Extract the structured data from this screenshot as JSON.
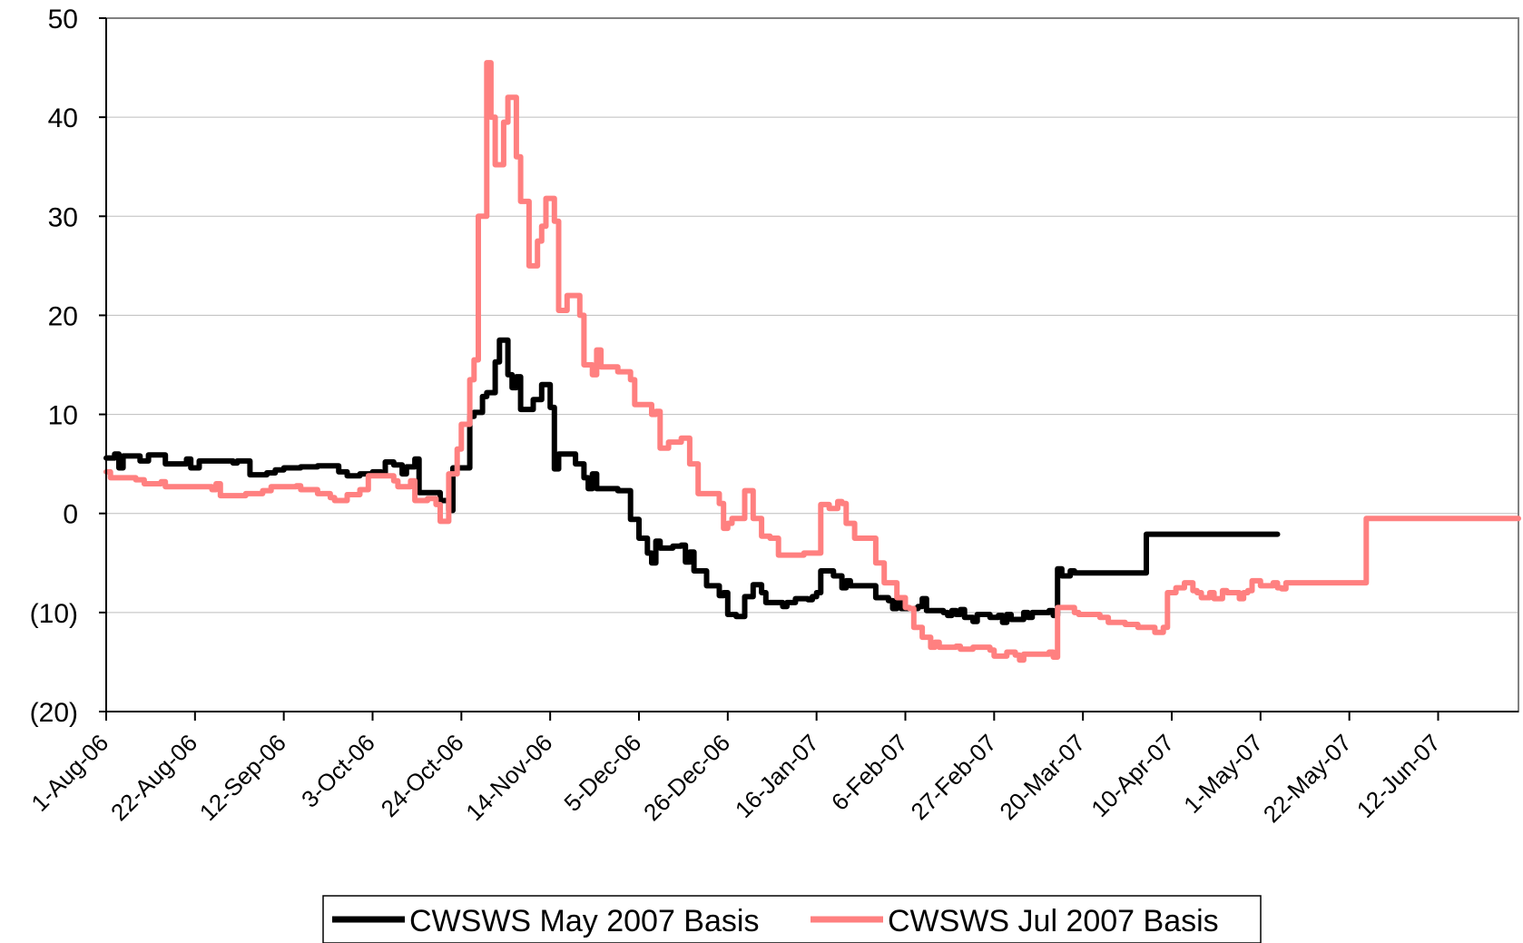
{
  "chart_data": {
    "type": "line",
    "title": "",
    "xlabel": "",
    "ylabel": "",
    "ylim": [
      -20,
      50
    ],
    "y_ticks": [
      {
        "value": 50,
        "label": "50",
        "negative": false
      },
      {
        "value": 40,
        "label": "40",
        "negative": false
      },
      {
        "value": 30,
        "label": "30",
        "negative": false
      },
      {
        "value": 20,
        "label": "20",
        "negative": false
      },
      {
        "value": 10,
        "label": "10",
        "negative": false
      },
      {
        "value": 0,
        "label": "0",
        "negative": false
      },
      {
        "value": -10,
        "label": "(10)",
        "negative": true
      },
      {
        "value": -20,
        "label": "(20)",
        "negative": true
      }
    ],
    "x_range": [
      "2006-08-01",
      "2007-07-01"
    ],
    "x_tick_dates": [
      "2006-08-01",
      "2006-08-22",
      "2006-09-12",
      "2006-10-03",
      "2006-10-24",
      "2006-11-14",
      "2006-12-05",
      "2006-12-26",
      "2007-01-16",
      "2007-02-06",
      "2007-02-27",
      "2007-03-20",
      "2007-04-10",
      "2007-05-01",
      "2007-05-22",
      "2007-06-12"
    ],
    "x_tick_labels": [
      "1-Aug-06",
      "22-Aug-06",
      "12-Sep-06",
      "3-Oct-06",
      "24-Oct-06",
      "14-Nov-06",
      "5-Dec-06",
      "26-Dec-06",
      "16-Jan-07",
      "6-Feb-07",
      "27-Feb-07",
      "20-Mar-07",
      "10-Apr-07",
      "1-May-07",
      "22-May-07",
      "12-Jun-07"
    ],
    "grid": "horizontal",
    "legend_position": "bottom",
    "negative_label_color": "#e00000",
    "series": [
      {
        "name": "CWSWS May 2007 Basis",
        "color": "#000000",
        "points": [
          [
            "2006-08-01",
            5.6
          ],
          [
            "2006-08-03",
            6.0
          ],
          [
            "2006-08-04",
            4.6
          ],
          [
            "2006-08-05",
            5.8
          ],
          [
            "2006-08-09",
            5.3
          ],
          [
            "2006-08-11",
            5.9
          ],
          [
            "2006-08-13",
            5.9
          ],
          [
            "2006-08-15",
            5.0
          ],
          [
            "2006-08-20",
            5.5
          ],
          [
            "2006-08-21",
            4.6
          ],
          [
            "2006-08-23",
            5.3
          ],
          [
            "2006-08-31",
            5.1
          ],
          [
            "2006-09-01",
            5.3
          ],
          [
            "2006-09-03",
            5.3
          ],
          [
            "2006-09-04",
            3.9
          ],
          [
            "2006-09-08",
            4.1
          ],
          [
            "2006-09-10",
            4.4
          ],
          [
            "2006-09-12",
            4.6
          ],
          [
            "2006-09-16",
            4.7
          ],
          [
            "2006-09-20",
            4.8
          ],
          [
            "2006-09-25",
            4.2
          ],
          [
            "2006-09-27",
            3.8
          ],
          [
            "2006-09-30",
            4.0
          ],
          [
            "2006-10-03",
            4.2
          ],
          [
            "2006-10-05",
            4.1
          ],
          [
            "2006-10-06",
            5.2
          ],
          [
            "2006-10-08",
            4.9
          ],
          [
            "2006-10-10",
            4.0
          ],
          [
            "2006-10-11",
            4.7
          ],
          [
            "2006-10-13",
            5.5
          ],
          [
            "2006-10-14",
            2.1
          ],
          [
            "2006-10-19",
            1.3
          ],
          [
            "2006-10-21",
            0.3
          ],
          [
            "2006-10-22",
            4.6
          ],
          [
            "2006-10-25",
            4.6
          ],
          [
            "2006-10-26",
            9.8
          ],
          [
            "2006-10-27",
            10.2
          ],
          [
            "2006-10-29",
            11.8
          ],
          [
            "2006-10-30",
            12.2
          ],
          [
            "2006-11-01",
            15.3
          ],
          [
            "2006-11-02",
            17.5
          ],
          [
            "2006-11-04",
            14.0
          ],
          [
            "2006-11-05",
            12.7
          ],
          [
            "2006-11-06",
            13.8
          ],
          [
            "2006-11-07",
            10.5
          ],
          [
            "2006-11-10",
            11.5
          ],
          [
            "2006-11-12",
            13.0
          ],
          [
            "2006-11-14",
            10.7
          ],
          [
            "2006-11-15",
            4.5
          ],
          [
            "2006-11-16",
            6.0
          ],
          [
            "2006-11-20",
            5.0
          ],
          [
            "2006-11-22",
            3.6
          ],
          [
            "2006-11-23",
            2.5
          ],
          [
            "2006-11-24",
            4.0
          ],
          [
            "2006-11-25",
            2.5
          ],
          [
            "2006-11-30",
            2.3
          ],
          [
            "2006-12-03",
            -0.6
          ],
          [
            "2006-12-05",
            -2.5
          ],
          [
            "2006-12-07",
            -4.0
          ],
          [
            "2006-12-08",
            -5.0
          ],
          [
            "2006-12-09",
            -2.8
          ],
          [
            "2006-12-10",
            -3.5
          ],
          [
            "2006-12-13",
            -3.3
          ],
          [
            "2006-12-15",
            -3.2
          ],
          [
            "2006-12-16",
            -4.9
          ],
          [
            "2006-12-17",
            -3.9
          ],
          [
            "2006-12-18",
            -5.8
          ],
          [
            "2006-12-21",
            -7.3
          ],
          [
            "2006-12-24",
            -8.3
          ],
          [
            "2006-12-25",
            -8.0
          ],
          [
            "2006-12-26",
            -10.2
          ],
          [
            "2006-12-28",
            -10.4
          ],
          [
            "2006-12-30",
            -8.4
          ],
          [
            "2007-01-01",
            -7.2
          ],
          [
            "2007-01-03",
            -8.0
          ],
          [
            "2007-01-04",
            -9.0
          ],
          [
            "2007-01-07",
            -9.0
          ],
          [
            "2007-01-08",
            -9.4
          ],
          [
            "2007-01-09",
            -9.0
          ],
          [
            "2007-01-11",
            -8.6
          ],
          [
            "2007-01-14",
            -8.7
          ],
          [
            "2007-01-15",
            -8.4
          ],
          [
            "2007-01-16",
            -8.0
          ],
          [
            "2007-01-17",
            -5.8
          ],
          [
            "2007-01-20",
            -6.3
          ],
          [
            "2007-01-22",
            -7.5
          ],
          [
            "2007-01-23",
            -6.8
          ],
          [
            "2007-01-24",
            -7.3
          ],
          [
            "2007-01-29",
            -7.3
          ],
          [
            "2007-01-30",
            -8.5
          ],
          [
            "2007-02-02",
            -8.8
          ],
          [
            "2007-02-03",
            -9.6
          ],
          [
            "2007-02-04",
            -8.6
          ],
          [
            "2007-02-05",
            -9.6
          ],
          [
            "2007-02-09",
            -9.4
          ],
          [
            "2007-02-10",
            -8.6
          ],
          [
            "2007-02-11",
            -9.8
          ],
          [
            "2007-02-15",
            -10.0
          ],
          [
            "2007-02-16",
            -10.3
          ],
          [
            "2007-02-17",
            -9.8
          ],
          [
            "2007-02-18",
            -10.2
          ],
          [
            "2007-02-19",
            -9.7
          ],
          [
            "2007-02-20",
            -10.5
          ],
          [
            "2007-02-22",
            -10.9
          ],
          [
            "2007-02-23",
            -10.2
          ],
          [
            "2007-02-26",
            -10.5
          ],
          [
            "2007-02-28",
            -10.3
          ],
          [
            "2007-03-01",
            -11.0
          ],
          [
            "2007-03-02",
            -10.2
          ],
          [
            "2007-03-03",
            -10.7
          ],
          [
            "2007-03-06",
            -10.0
          ],
          [
            "2007-03-07",
            -10.5
          ],
          [
            "2007-03-08",
            -10.0
          ],
          [
            "2007-03-12",
            -9.8
          ],
          [
            "2007-03-13",
            -10.3
          ],
          [
            "2007-03-14",
            -5.6
          ],
          [
            "2007-03-15",
            -6.3
          ],
          [
            "2007-03-17",
            -5.8
          ],
          [
            "2007-03-18",
            -6.0
          ],
          [
            "2007-04-03",
            -6.0
          ],
          [
            "2007-04-04",
            -2.1
          ],
          [
            "2007-05-05",
            -2.1
          ]
        ]
      },
      {
        "name": "CWSWS Jul 2007 Basis",
        "color": "#ff8080",
        "points": [
          [
            "2006-08-01",
            4.2
          ],
          [
            "2006-08-02",
            3.6
          ],
          [
            "2006-08-08",
            3.4
          ],
          [
            "2006-08-10",
            3.0
          ],
          [
            "2006-08-14",
            3.2
          ],
          [
            "2006-08-15",
            2.7
          ],
          [
            "2006-08-22",
            2.7
          ],
          [
            "2006-08-26",
            2.4
          ],
          [
            "2006-08-27",
            3.0
          ],
          [
            "2006-08-28",
            1.8
          ],
          [
            "2006-09-03",
            2.0
          ],
          [
            "2006-09-07",
            2.3
          ],
          [
            "2006-09-09",
            2.7
          ],
          [
            "2006-09-15",
            2.8
          ],
          [
            "2006-09-16",
            2.4
          ],
          [
            "2006-09-20",
            2.0
          ],
          [
            "2006-09-23",
            1.6
          ],
          [
            "2006-09-24",
            1.3
          ],
          [
            "2006-09-27",
            1.9
          ],
          [
            "2006-09-30",
            2.4
          ],
          [
            "2006-10-02",
            3.8
          ],
          [
            "2006-10-08",
            3.3
          ],
          [
            "2006-10-09",
            2.7
          ],
          [
            "2006-10-12",
            3.3
          ],
          [
            "2006-10-13",
            1.3
          ],
          [
            "2006-10-16",
            1.5
          ],
          [
            "2006-10-18",
            0.9
          ],
          [
            "2006-10-19",
            -0.8
          ],
          [
            "2006-10-21",
            4.0
          ],
          [
            "2006-10-23",
            6.5
          ],
          [
            "2006-10-24",
            9.0
          ],
          [
            "2006-10-26",
            13.5
          ],
          [
            "2006-10-27",
            15.5
          ],
          [
            "2006-10-28",
            30.0
          ],
          [
            "2006-10-30",
            45.5
          ],
          [
            "2006-10-31",
            40.0
          ],
          [
            "2006-11-01",
            35.2
          ],
          [
            "2006-11-03",
            39.5
          ],
          [
            "2006-11-04",
            42.0
          ],
          [
            "2006-11-06",
            36.0
          ],
          [
            "2006-11-07",
            31.5
          ],
          [
            "2006-11-09",
            25.0
          ],
          [
            "2006-11-11",
            27.5
          ],
          [
            "2006-11-12",
            29.0
          ],
          [
            "2006-11-13",
            31.8
          ],
          [
            "2006-11-15",
            29.5
          ],
          [
            "2006-11-16",
            20.5
          ],
          [
            "2006-11-18",
            22.0
          ],
          [
            "2006-11-21",
            20.0
          ],
          [
            "2006-11-22",
            15.0
          ],
          [
            "2006-11-24",
            14.0
          ],
          [
            "2006-11-25",
            16.5
          ],
          [
            "2006-11-26",
            14.8
          ],
          [
            "2006-11-30",
            14.3
          ],
          [
            "2006-12-03",
            13.5
          ],
          [
            "2006-12-04",
            11.0
          ],
          [
            "2006-12-08",
            10.0
          ],
          [
            "2006-12-09",
            10.3
          ],
          [
            "2006-12-10",
            6.6
          ],
          [
            "2006-12-12",
            7.2
          ],
          [
            "2006-12-15",
            7.6
          ],
          [
            "2006-12-17",
            5.0
          ],
          [
            "2006-12-19",
            2.0
          ],
          [
            "2006-12-23",
            2.0
          ],
          [
            "2006-12-24",
            1.0
          ],
          [
            "2006-12-25",
            -1.5
          ],
          [
            "2006-12-26",
            -1.0
          ],
          [
            "2006-12-27",
            -0.5
          ],
          [
            "2006-12-30",
            2.3
          ],
          [
            "2007-01-01",
            -0.5
          ],
          [
            "2007-01-03",
            -2.3
          ],
          [
            "2007-01-05",
            -2.5
          ],
          [
            "2007-01-07",
            -4.2
          ],
          [
            "2007-01-09",
            -4.2
          ],
          [
            "2007-01-13",
            -4.0
          ],
          [
            "2007-01-17",
            0.9
          ],
          [
            "2007-01-19",
            0.5
          ],
          [
            "2007-01-21",
            1.2
          ],
          [
            "2007-01-22",
            1.0
          ],
          [
            "2007-01-23",
            -1.0
          ],
          [
            "2007-01-25",
            -2.5
          ],
          [
            "2007-01-28",
            -2.5
          ],
          [
            "2007-01-30",
            -5.0
          ],
          [
            "2007-02-01",
            -7.0
          ],
          [
            "2007-02-04",
            -8.5
          ],
          [
            "2007-02-06",
            -9.5
          ],
          [
            "2007-02-07",
            -9.6
          ],
          [
            "2007-02-08",
            -11.5
          ],
          [
            "2007-02-10",
            -12.5
          ],
          [
            "2007-02-12",
            -13.5
          ],
          [
            "2007-02-13",
            -13.0
          ],
          [
            "2007-02-14",
            -13.5
          ],
          [
            "2007-02-18",
            -13.4
          ],
          [
            "2007-02-19",
            -13.7
          ],
          [
            "2007-02-22",
            -13.5
          ],
          [
            "2007-02-26",
            -13.8
          ],
          [
            "2007-02-27",
            -14.4
          ],
          [
            "2007-03-02",
            -14.0
          ],
          [
            "2007-03-04",
            -14.3
          ],
          [
            "2007-03-05",
            -14.8
          ],
          [
            "2007-03-06",
            -14.2
          ],
          [
            "2007-03-08",
            -14.2
          ],
          [
            "2007-03-12",
            -14.0
          ],
          [
            "2007-03-13",
            -14.5
          ],
          [
            "2007-03-14",
            -9.5
          ],
          [
            "2007-03-18",
            -10.0
          ],
          [
            "2007-03-19",
            -10.2
          ],
          [
            "2007-03-24",
            -10.5
          ],
          [
            "2007-03-26",
            -11.0
          ],
          [
            "2007-03-30",
            -11.2
          ],
          [
            "2007-04-02",
            -11.5
          ],
          [
            "2007-04-04",
            -11.5
          ],
          [
            "2007-04-06",
            -12.0
          ],
          [
            "2007-04-08",
            -11.5
          ],
          [
            "2007-04-09",
            -8.0
          ],
          [
            "2007-04-11",
            -7.5
          ],
          [
            "2007-04-13",
            -7.0
          ],
          [
            "2007-04-15",
            -7.8
          ],
          [
            "2007-04-16",
            -8.0
          ],
          [
            "2007-04-17",
            -8.5
          ],
          [
            "2007-04-19",
            -8.0
          ],
          [
            "2007-04-20",
            -8.6
          ],
          [
            "2007-04-22",
            -7.8
          ],
          [
            "2007-04-23",
            -8.0
          ],
          [
            "2007-04-26",
            -8.6
          ],
          [
            "2007-04-27",
            -8.0
          ],
          [
            "2007-04-28",
            -7.8
          ],
          [
            "2007-04-29",
            -6.8
          ],
          [
            "2007-05-01",
            -7.3
          ],
          [
            "2007-05-04",
            -7.0
          ],
          [
            "2007-05-05",
            -7.5
          ],
          [
            "2007-05-06",
            -7.6
          ],
          [
            "2007-05-07",
            -7.0
          ],
          [
            "2007-05-25",
            -7.0
          ],
          [
            "2007-05-26",
            -0.5
          ],
          [
            "2007-07-01",
            -0.5
          ]
        ]
      }
    ]
  }
}
